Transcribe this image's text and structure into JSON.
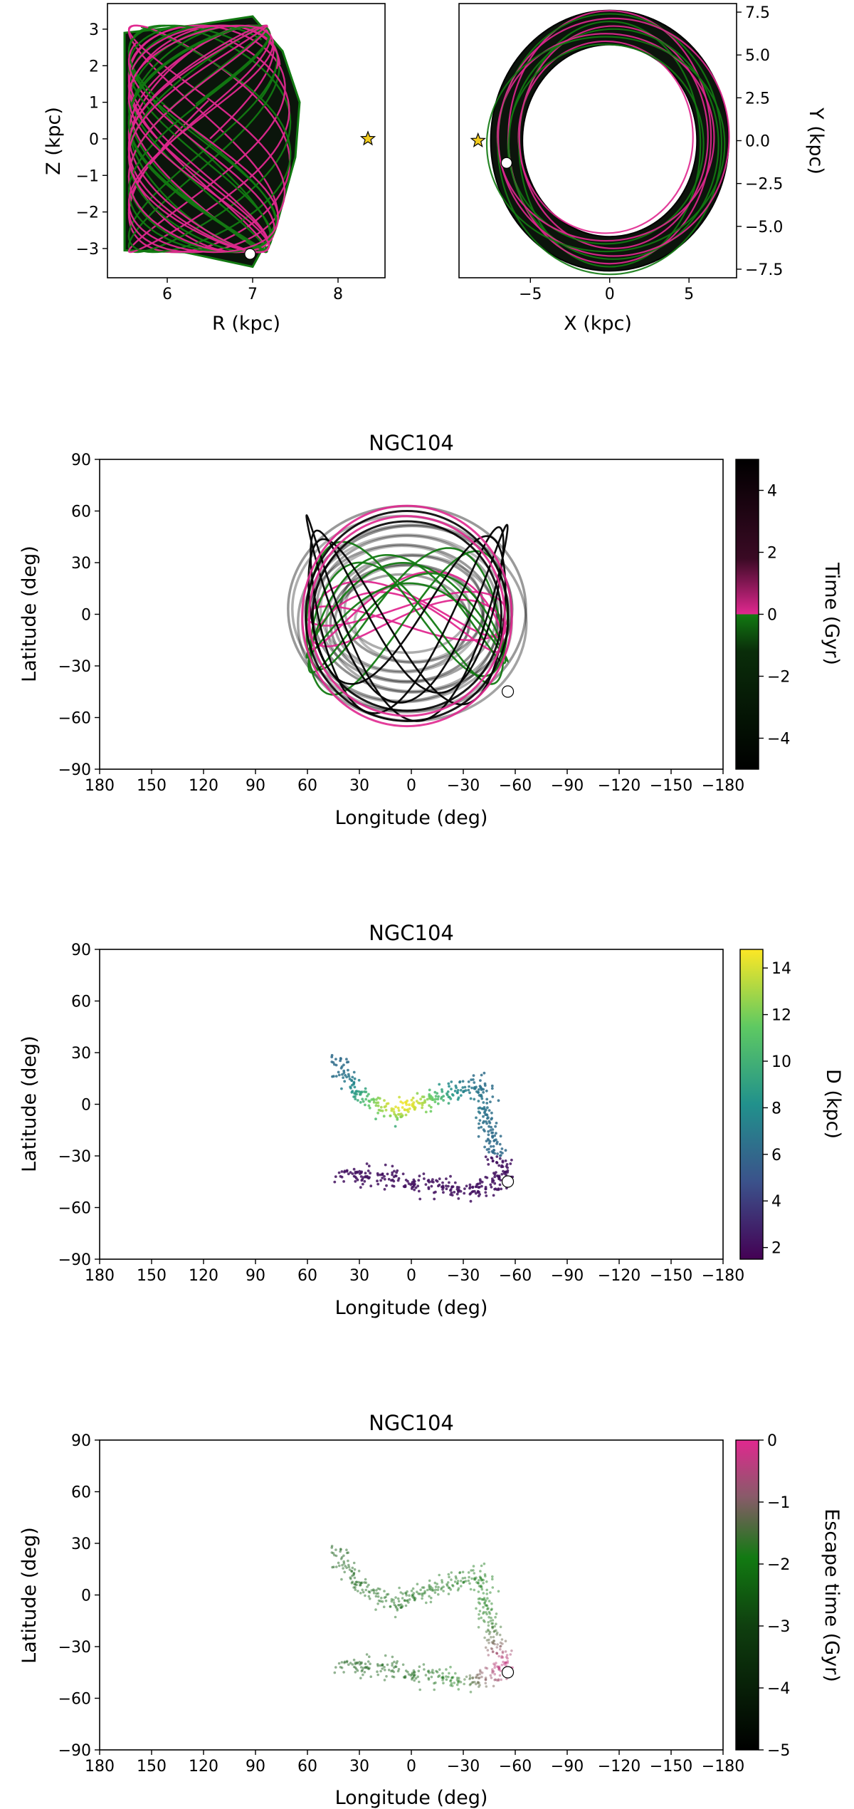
{
  "colors": {
    "orbit_dark": "#000000",
    "orbit_green": "#127a12",
    "orbit_magenta": "#e0288f",
    "orbit_grey": "#555555",
    "sun_star": "#f2cb1d",
    "cluster_marker": "#ffffff"
  },
  "icons": {
    "sun": "star-icon",
    "cluster": "circle-marker"
  },
  "chart_data": [
    {
      "type": "line",
      "panel": "meridional",
      "title": "",
      "xlabel": "R (kpc)",
      "ylabel": "Z (kpc)",
      "xlim": [
        5.3,
        8.55
      ],
      "ylim": [
        -3.8,
        3.7
      ],
      "xticks": [
        "6",
        "7",
        "8"
      ],
      "yticks": [
        "3",
        "2",
        "1",
        "0",
        "−1",
        "−2",
        "−3"
      ],
      "envelope_outer": [
        [
          5.5,
          2.9
        ],
        [
          6.3,
          3.1
        ],
        [
          7.0,
          3.35
        ],
        [
          7.35,
          2.4
        ],
        [
          7.55,
          1.0
        ],
        [
          7.5,
          -0.5
        ],
        [
          7.3,
          -2.2
        ],
        [
          7.0,
          -3.5
        ],
        [
          6.2,
          -3.1
        ],
        [
          5.5,
          -3.05
        ]
      ],
      "envelope_inner": [
        [
          5.5,
          2.9
        ],
        [
          5.75,
          1.6
        ],
        [
          5.95,
          0.0
        ],
        [
          5.8,
          -1.6
        ],
        [
          5.5,
          -3.05
        ]
      ],
      "sun": {
        "x": 8.35,
        "y": 0.0
      },
      "cluster_position": {
        "x": 6.97,
        "y": -3.15
      },
      "grid": false,
      "legend": "none"
    },
    {
      "type": "line",
      "panel": "face-on",
      "title": "",
      "xlabel": "X (kpc)",
      "ylabel": "Y (kpc)",
      "xlim": [
        -9.5,
        8.0
      ],
      "ylim": [
        -8.0,
        8.0
      ],
      "xticks": [
        "−5",
        "0",
        "5"
      ],
      "yticks": [
        "7.5",
        "5.0",
        "2.5",
        "0.0",
        "−2.5",
        "−5.0",
        "−7.5"
      ],
      "ring_outer": {
        "rx": 7.5,
        "ry": 7.6
      },
      "ring_inner": {
        "rx": 5.5,
        "ry": 5.6
      },
      "sun": {
        "x": -8.3,
        "y": 0.0
      },
      "cluster_position": {
        "x": -6.5,
        "y": -1.3
      },
      "grid": false,
      "legend": "none"
    },
    {
      "type": "line",
      "panel": "sky-orbit",
      "title": "NGC104",
      "xlabel": "Longitude (deg)",
      "ylabel": "Latitude (deg)",
      "xlim": [
        180,
        -180
      ],
      "ylim": [
        -90,
        90
      ],
      "xticks": [
        "180",
        "150",
        "120",
        "90",
        "60",
        "30",
        "0",
        "−30",
        "−60",
        "−90",
        "−120",
        "−150",
        "−180"
      ],
      "yticks": [
        "90",
        "60",
        "30",
        "0",
        "−30",
        "−60",
        "−90"
      ],
      "orbit_region": {
        "lon_range": [
          63,
          -58
        ],
        "lat_range": [
          -65,
          63
        ]
      },
      "cluster_position": {
        "x": -55.7,
        "y": -44.9
      },
      "colorbar": {
        "label": "Time (Gyr)",
        "ticks": [
          "4",
          "2",
          "0",
          "−2",
          "−4"
        ],
        "range": [
          -5,
          5
        ],
        "stops": [
          "#000000",
          "#127a12",
          "#e0288f",
          "#000000"
        ]
      },
      "grid": false,
      "legend": "none"
    },
    {
      "type": "scatter",
      "panel": "sky-stream-distance",
      "title": "NGC104",
      "xlabel": "Longitude (deg)",
      "ylabel": "Latitude (deg)",
      "xlim": [
        180,
        -180
      ],
      "ylim": [
        -90,
        90
      ],
      "xticks": [
        "180",
        "150",
        "120",
        "90",
        "60",
        "30",
        "0",
        "−30",
        "−60",
        "−90",
        "−120",
        "−150",
        "−180"
      ],
      "yticks": [
        "90",
        "60",
        "30",
        "0",
        "−30",
        "−60",
        "−90"
      ],
      "stream_path": [
        [
          45,
          25
        ],
        [
          30,
          5
        ],
        [
          10,
          -5
        ],
        [
          -15,
          5
        ],
        [
          -40,
          12
        ],
        [
          -45,
          -20
        ],
        [
          -55,
          -45
        ],
        [
          -30,
          -50
        ],
        [
          0,
          -45
        ],
        [
          40,
          -40
        ]
      ],
      "cluster_position": {
        "x": -55.7,
        "y": -44.9
      },
      "colorbar": {
        "label": "D (kpc)",
        "ticks": [
          "14",
          "12",
          "10",
          "8",
          "6",
          "4",
          "2"
        ],
        "range": [
          1.5,
          14.8
        ],
        "stops": [
          "#440154",
          "#3b528b",
          "#21918c",
          "#5ec962",
          "#fde725"
        ]
      },
      "grid": false,
      "legend": "none"
    },
    {
      "type": "scatter",
      "panel": "sky-stream-escape",
      "title": "NGC104",
      "xlabel": "Longitude (deg)",
      "ylabel": "Latitude (deg)",
      "xlim": [
        180,
        -180
      ],
      "ylim": [
        -90,
        90
      ],
      "xticks": [
        "180",
        "150",
        "120",
        "90",
        "60",
        "30",
        "0",
        "−30",
        "−60",
        "−90",
        "−120",
        "−150",
        "−180"
      ],
      "yticks": [
        "90",
        "60",
        "30",
        "0",
        "−30",
        "−60",
        "−90"
      ],
      "stream_path": [
        [
          45,
          25
        ],
        [
          30,
          5
        ],
        [
          10,
          -5
        ],
        [
          -15,
          5
        ],
        [
          -40,
          12
        ],
        [
          -45,
          -20
        ],
        [
          -55,
          -45
        ],
        [
          -30,
          -50
        ],
        [
          0,
          -45
        ],
        [
          40,
          -40
        ]
      ],
      "cluster_position": {
        "x": -55.7,
        "y": -44.9
      },
      "colorbar": {
        "label": "Escape time (Gyr)",
        "ticks": [
          "0",
          "−1",
          "−2",
          "−3",
          "−4",
          "−5"
        ],
        "range": [
          -5,
          0
        ],
        "stops": [
          "#000000",
          "#127a12",
          "#e0288f"
        ]
      },
      "grid": false,
      "legend": "none"
    }
  ]
}
